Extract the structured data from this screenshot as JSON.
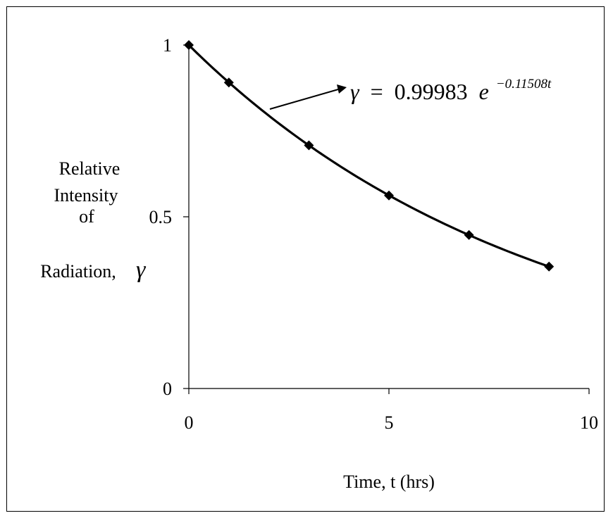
{
  "chart_data": {
    "type": "scatter",
    "title": "",
    "xlabel": "Time, t (hrs)",
    "ylabel": {
      "lines": [
        "Relative",
        "Intensity",
        "of",
        "Radiation,"
      ],
      "symbol": "γ"
    },
    "xlim": [
      0,
      10
    ],
    "ylim": [
      0,
      1
    ],
    "x_ticks": [
      0,
      5,
      10
    ],
    "y_ticks": [
      0,
      0.5,
      1
    ],
    "x_tick_labels": [
      "0",
      "5",
      "10"
    ],
    "y_tick_labels": [
      "0",
      "0.5",
      "1"
    ],
    "grid": false,
    "legend": "none",
    "series": [
      {
        "marker": "diamond",
        "x": [
          0,
          1,
          3,
          5,
          7,
          9
        ],
        "y": [
          1.0,
          0.891,
          0.708,
          0.562,
          0.447,
          0.355
        ]
      }
    ],
    "fit": {
      "model": "exponential",
      "a": 0.99983,
      "b": -0.11508,
      "label": {
        "lhs": "γ",
        "eq": "=",
        "coef": "0.99983",
        "base": "e",
        "exponent": "−0.11508t"
      }
    },
    "colors": {
      "line": "#000000",
      "marker": "#000000",
      "axis": "#000000"
    }
  }
}
